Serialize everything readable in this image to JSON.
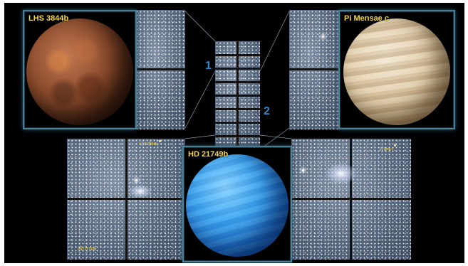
{
  "image": {
    "insets": {
      "left": {
        "title": "LHS 3844b"
      },
      "right": {
        "title": "Pi Mensae c"
      },
      "bottom": {
        "title": "HD 21749b"
      }
    },
    "camera_labels": [
      "1",
      "2"
    ],
    "target_labels": {
      "lhs": "LHS 3844b",
      "pi": "Pi Men c",
      "hd": "HD 21749b"
    }
  }
}
